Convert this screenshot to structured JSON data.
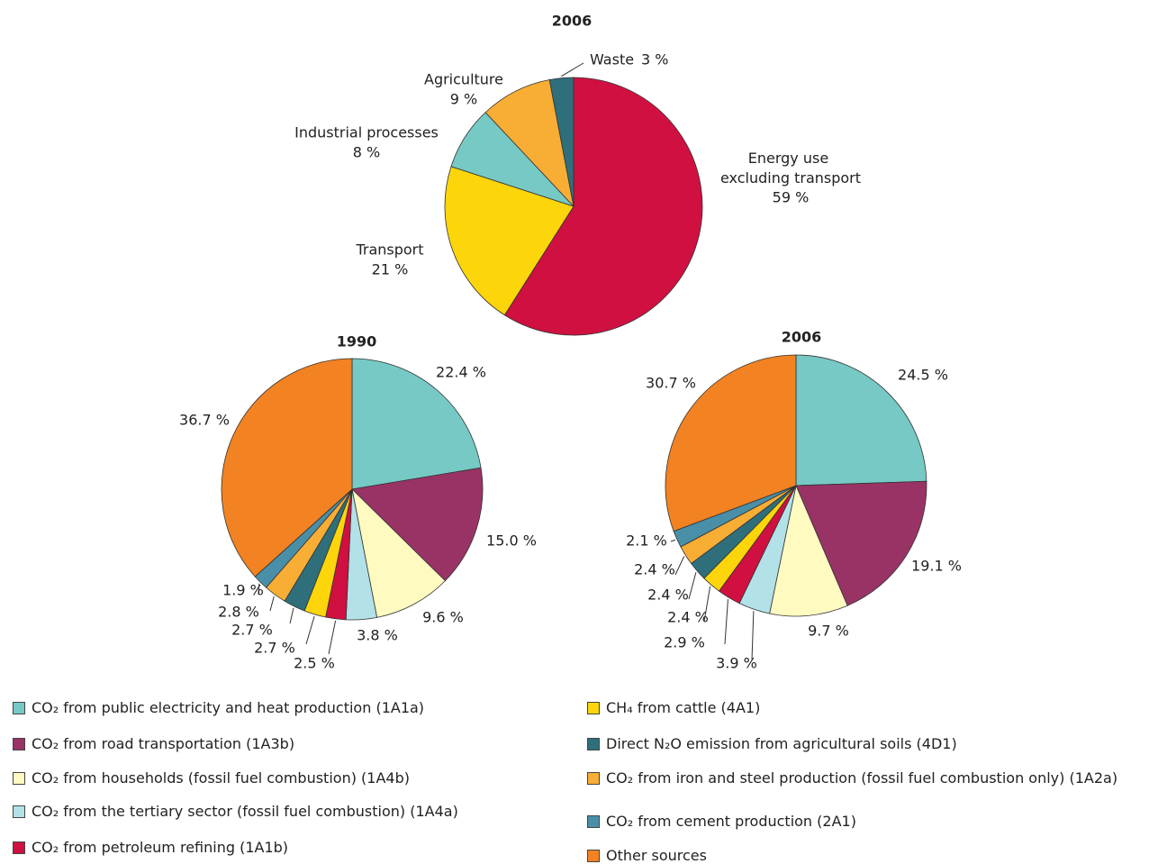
{
  "chart_data": [
    {
      "type": "pie",
      "title": "2006",
      "categories": [
        "Energy use excluding transport",
        "Transport",
        "Industrial processes",
        "Agriculture",
        "Waste"
      ],
      "values": [
        59,
        21,
        8,
        9,
        3
      ],
      "value_labels": [
        "59 %",
        "21 %",
        "8 %",
        "9 %",
        "3 %"
      ],
      "colors": [
        "#d01040",
        "#fcd50a",
        "#76c9c5",
        "#f8ad35",
        "#2f6f7c"
      ]
    },
    {
      "type": "pie",
      "title": "1990",
      "categories": [
        "CO₂ from public electricity and heat production (1A1a)",
        "CO₂ from road transportation (1A3b)",
        "CO₂ from households (fossil fuel combustion) (1A4b)",
        "CO₂ from the tertiary sector (fossil fuel combustion) (1A4a)",
        "CO₂ from petroleum refining (1A1b)",
        "CH₄ from cattle (4A1)",
        "Direct N₂O emission from agricultural soils (4D1)",
        "CO₂ from iron and steel production (fossil fuel combustion only) (1A2a)",
        "CO₂ from cement production (2A1)",
        "Other sources"
      ],
      "colors": [
        "#76c9c5",
        "#993366",
        "#fffac0",
        "#b2e1e8",
        "#d01040",
        "#fcd50a",
        "#2f6f7c",
        "#f8ad35",
        "#4a8fa8",
        "#f28222"
      ],
      "values": [
        22.4,
        15.0,
        9.6,
        3.8,
        2.5,
        2.7,
        2.7,
        2.8,
        1.9,
        36.7
      ],
      "value_labels": [
        "22.4 %",
        "15.0 %",
        "9.6 %",
        "3.8 %",
        "2.5 %",
        "2.7 %",
        "2.7 %",
        "2.8 %",
        "1.9 %",
        "36.7 %"
      ]
    },
    {
      "type": "pie",
      "title": "2006",
      "values": [
        24.5,
        19.1,
        9.7,
        3.9,
        2.9,
        2.4,
        2.4,
        2.4,
        2.1,
        30.7
      ],
      "value_labels": [
        "24.5 %",
        "19.1 %",
        "9.7 %",
        "3.9 %",
        "2.9 %",
        "2.4 %",
        "2.4 %",
        "2.4 %",
        "2.1 %",
        "30.7 %"
      ]
    }
  ]
}
